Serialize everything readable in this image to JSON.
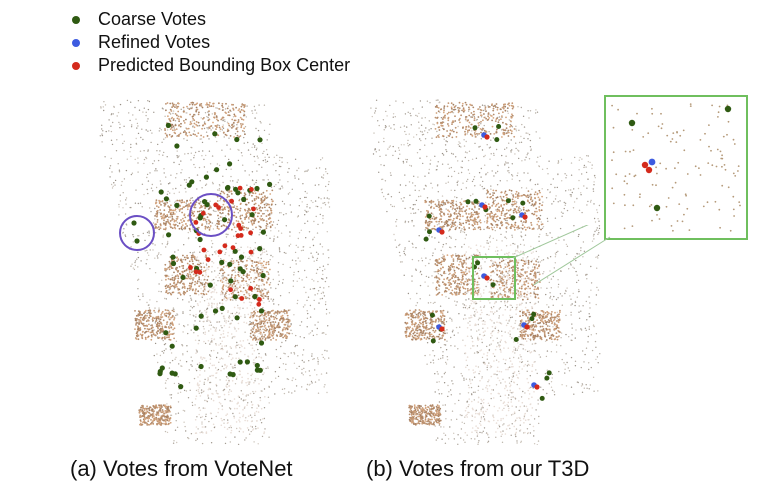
{
  "legend": [
    {
      "label": "Coarse Votes",
      "color": "#2f5a12"
    },
    {
      "label": "Refined Votes",
      "color": "#3d5be0"
    },
    {
      "label": "Predicted Bounding Box Center",
      "color": "#d42a1c"
    }
  ],
  "captions": {
    "a": "(a) Votes from VoteNet",
    "b": "(b) Votes from our T3D"
  },
  "colors": {
    "coarse": "#2f5a12",
    "refined": "#3d5be0",
    "center": "#d42a1c",
    "highlight_circle": "#6b4fc4",
    "zoom_box": "#6fbf5e"
  }
}
